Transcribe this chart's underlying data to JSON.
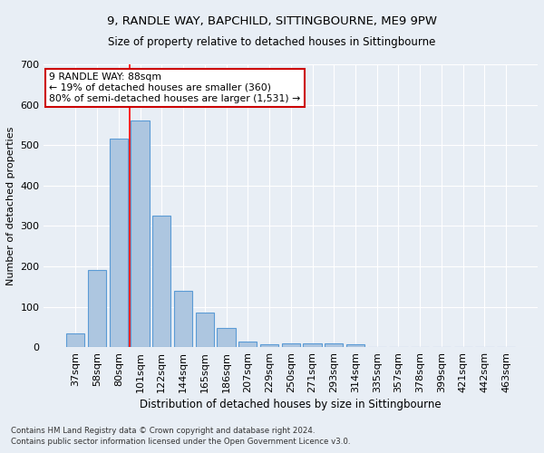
{
  "title": "9, RANDLE WAY, BAPCHILD, SITTINGBOURNE, ME9 9PW",
  "subtitle": "Size of property relative to detached houses in Sittingbourne",
  "xlabel": "Distribution of detached houses by size in Sittingbourne",
  "ylabel": "Number of detached properties",
  "footnote1": "Contains HM Land Registry data © Crown copyright and database right 2024.",
  "footnote2": "Contains public sector information licensed under the Open Government Licence v3.0.",
  "categories": [
    "37sqm",
    "58sqm",
    "80sqm",
    "101sqm",
    "122sqm",
    "144sqm",
    "165sqm",
    "186sqm",
    "207sqm",
    "229sqm",
    "250sqm",
    "271sqm",
    "293sqm",
    "314sqm",
    "335sqm",
    "357sqm",
    "378sqm",
    "399sqm",
    "421sqm",
    "442sqm",
    "463sqm"
  ],
  "values": [
    35,
    190,
    515,
    560,
    325,
    140,
    85,
    47,
    13,
    8,
    10,
    10,
    10,
    6,
    0,
    0,
    0,
    0,
    0,
    0,
    0
  ],
  "bar_color": "#adc6e0",
  "bar_edge_color": "#5b9bd5",
  "bg_color": "#e8eef5",
  "grid_color": "#ffffff",
  "red_line_x": 2.5,
  "annotation_text": "9 RANDLE WAY: 88sqm\n← 19% of detached houses are smaller (360)\n80% of semi-detached houses are larger (1,531) →",
  "annotation_box_color": "#ffffff",
  "annotation_box_edge": "#cc0000",
  "ylim": [
    0,
    700
  ],
  "yticks": [
    0,
    100,
    200,
    300,
    400,
    500,
    600,
    700
  ]
}
